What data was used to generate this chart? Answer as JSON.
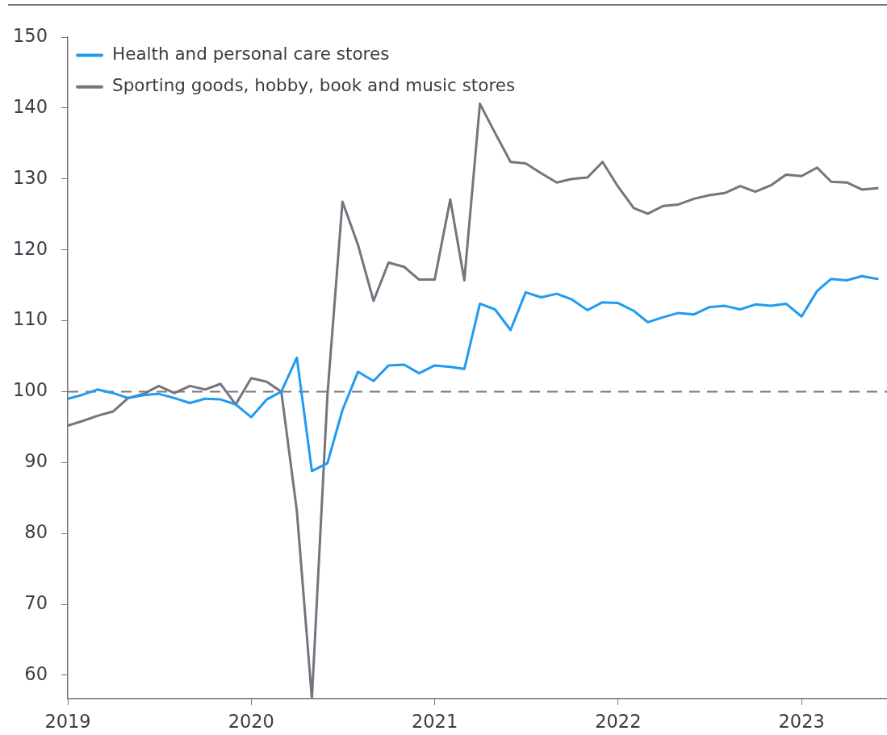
{
  "chart_data": {
    "type": "line",
    "x": [
      "2019-01",
      "2019-02",
      "2019-03",
      "2019-04",
      "2019-05",
      "2019-06",
      "2019-07",
      "2019-08",
      "2019-09",
      "2019-10",
      "2019-11",
      "2019-12",
      "2020-01",
      "2020-02",
      "2020-03",
      "2020-04",
      "2020-05",
      "2020-06",
      "2020-07",
      "2020-08",
      "2020-09",
      "2020-10",
      "2020-11",
      "2020-12",
      "2021-01",
      "2021-02",
      "2021-03",
      "2021-04",
      "2021-05",
      "2021-06",
      "2021-07",
      "2021-08",
      "2021-09",
      "2021-10",
      "2021-11",
      "2021-12",
      "2022-01",
      "2022-02",
      "2022-03",
      "2022-04",
      "2022-05",
      "2022-06",
      "2022-07",
      "2022-08",
      "2022-09",
      "2022-10",
      "2022-11",
      "2022-12",
      "2023-01",
      "2023-02",
      "2023-03",
      "2023-04",
      "2023-05",
      "2023-06"
    ],
    "xlim": [
      "2019-01-01",
      "2023-06-20"
    ],
    "xticks": [
      "2019",
      "2020",
      "2021",
      "2022",
      "2023"
    ],
    "ylim": [
      56.7,
      150
    ],
    "yticks": [
      60,
      70,
      80,
      90,
      100,
      110,
      120,
      130,
      140,
      150
    ],
    "series": [
      {
        "name": "Health and personal care stores",
        "color": "#1f9bf0",
        "values": [
          99.0,
          99.6,
          100.3,
          99.8,
          99.1,
          99.5,
          99.7,
          99.1,
          98.4,
          99.0,
          98.9,
          98.2,
          96.4,
          98.9,
          100.0,
          104.8,
          88.8,
          89.9,
          97.4,
          102.8,
          101.5,
          103.7,
          103.8,
          102.6,
          103.7,
          103.5,
          103.2,
          112.4,
          111.6,
          108.7,
          114.0,
          113.3,
          113.8,
          113.0,
          111.5,
          112.6,
          112.5,
          111.4,
          109.8,
          110.5,
          111.1,
          110.9,
          111.9,
          112.1,
          111.6,
          112.3,
          112.1,
          112.4,
          110.6,
          114.2,
          115.9,
          115.7,
          116.3,
          115.9
        ]
      },
      {
        "name": "Sporting goods, hobby, book and music stores",
        "color": "#75747f",
        "values": [
          95.2,
          95.9,
          96.6,
          97.2,
          99.1,
          99.7,
          100.8,
          99.8,
          100.8,
          100.3,
          101.1,
          98.2,
          101.9,
          101.4,
          100.0,
          83.2,
          56.7,
          99.5,
          126.8,
          120.7,
          112.8,
          118.2,
          117.6,
          115.8,
          115.8,
          127.1,
          115.7,
          140.6,
          136.5,
          132.4,
          132.2,
          130.8,
          129.5,
          130.0,
          130.2,
          132.4,
          128.9,
          125.9,
          125.1,
          126.2,
          126.4,
          127.2,
          127.7,
          128.0,
          129.0,
          128.2,
          129.1,
          130.6,
          130.4,
          131.6,
          129.6,
          129.5,
          128.5,
          128.7
        ]
      }
    ],
    "ref_lines": [
      {
        "axis": "y",
        "value": 100,
        "color": "#75747f",
        "line_style": "dashed"
      }
    ],
    "legend": "top left",
    "grid": false
  }
}
